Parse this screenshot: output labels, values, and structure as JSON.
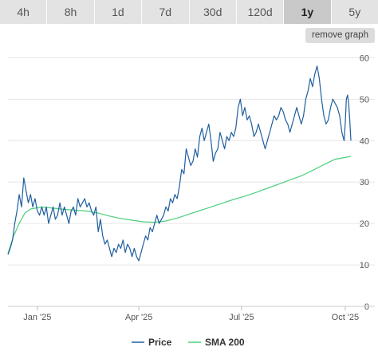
{
  "tabs": [
    {
      "label": "4h",
      "active": false
    },
    {
      "label": "8h",
      "active": false
    },
    {
      "label": "1d",
      "active": false
    },
    {
      "label": "7d",
      "active": false
    },
    {
      "label": "30d",
      "active": false
    },
    {
      "label": "120d",
      "active": false
    },
    {
      "label": "1y",
      "active": true
    },
    {
      "label": "5y",
      "active": false
    }
  ],
  "remove_graph_label": "remove graph",
  "colors": {
    "price": "#1f5f9e",
    "sma": "#4ccf7b",
    "grid": "#e6e6e6",
    "tab_bg": "#e3e3e3",
    "tab_active_bg": "#c9c9c9"
  },
  "chart_data": {
    "type": "line",
    "y_ticks": [
      0,
      10,
      20,
      30,
      40,
      50,
      60
    ],
    "ylim": [
      0,
      62
    ],
    "y_axis_position": "right",
    "grid": true,
    "x_ticks": [
      {
        "label": "Jan '25",
        "day": 26
      },
      {
        "label": "Apr '25",
        "day": 116
      },
      {
        "label": "Jul '25",
        "day": 207
      },
      {
        "label": "Oct '25",
        "day": 299
      }
    ],
    "x_range_days": [
      0,
      304
    ],
    "legend": {
      "position": "bottom-center"
    },
    "series": [
      {
        "name": "Price",
        "color": "#1f5f9e",
        "points": [
          [
            0,
            12.5
          ],
          [
            2,
            14
          ],
          [
            4,
            16
          ],
          [
            6,
            20
          ],
          [
            8,
            23
          ],
          [
            10,
            27
          ],
          [
            12,
            24
          ],
          [
            14,
            31
          ],
          [
            16,
            28
          ],
          [
            18,
            25
          ],
          [
            20,
            27
          ],
          [
            22,
            24
          ],
          [
            24,
            26
          ],
          [
            26,
            23
          ],
          [
            28,
            22
          ],
          [
            30,
            24
          ],
          [
            32,
            22
          ],
          [
            34,
            24
          ],
          [
            36,
            20
          ],
          [
            38,
            22
          ],
          [
            40,
            24
          ],
          [
            42,
            21
          ],
          [
            44,
            22
          ],
          [
            46,
            25
          ],
          [
            48,
            22
          ],
          [
            50,
            24
          ],
          [
            52,
            22
          ],
          [
            54,
            20
          ],
          [
            56,
            23
          ],
          [
            58,
            24
          ],
          [
            60,
            22
          ],
          [
            62,
            26
          ],
          [
            64,
            24
          ],
          [
            66,
            25
          ],
          [
            68,
            26
          ],
          [
            70,
            24
          ],
          [
            72,
            25
          ],
          [
            74,
            23
          ],
          [
            76,
            22
          ],
          [
            78,
            24
          ],
          [
            80,
            18
          ],
          [
            82,
            21
          ],
          [
            84,
            17
          ],
          [
            86,
            15
          ],
          [
            88,
            16
          ],
          [
            90,
            14
          ],
          [
            92,
            12
          ],
          [
            94,
            14
          ],
          [
            96,
            13
          ],
          [
            98,
            15
          ],
          [
            100,
            14
          ],
          [
            102,
            16
          ],
          [
            104,
            13
          ],
          [
            106,
            15
          ],
          [
            108,
            14
          ],
          [
            110,
            12
          ],
          [
            112,
            14
          ],
          [
            114,
            12
          ],
          [
            116,
            11
          ],
          [
            118,
            13
          ],
          [
            120,
            15
          ],
          [
            122,
            17
          ],
          [
            124,
            16
          ],
          [
            126,
            19
          ],
          [
            128,
            18
          ],
          [
            130,
            20
          ],
          [
            132,
            22
          ],
          [
            134,
            20
          ],
          [
            136,
            21
          ],
          [
            138,
            22
          ],
          [
            140,
            24
          ],
          [
            142,
            23
          ],
          [
            144,
            26
          ],
          [
            146,
            25
          ],
          [
            148,
            27
          ],
          [
            150,
            26
          ],
          [
            152,
            29
          ],
          [
            154,
            33
          ],
          [
            156,
            32
          ],
          [
            158,
            38
          ],
          [
            160,
            36
          ],
          [
            162,
            34
          ],
          [
            164,
            35
          ],
          [
            166,
            38
          ],
          [
            168,
            36
          ],
          [
            170,
            41
          ],
          [
            172,
            43
          ],
          [
            174,
            40
          ],
          [
            176,
            42
          ],
          [
            178,
            44
          ],
          [
            180,
            40
          ],
          [
            182,
            35
          ],
          [
            184,
            37
          ],
          [
            186,
            38
          ],
          [
            188,
            42
          ],
          [
            190,
            40
          ],
          [
            192,
            38
          ],
          [
            194,
            41
          ],
          [
            196,
            40
          ],
          [
            198,
            42
          ],
          [
            200,
            41
          ],
          [
            202,
            43
          ],
          [
            204,
            48
          ],
          [
            206,
            50
          ],
          [
            208,
            46
          ],
          [
            210,
            48
          ],
          [
            212,
            45
          ],
          [
            214,
            46
          ],
          [
            216,
            44
          ],
          [
            218,
            41
          ],
          [
            220,
            42
          ],
          [
            222,
            44
          ],
          [
            224,
            42
          ],
          [
            226,
            40
          ],
          [
            228,
            38
          ],
          [
            230,
            40
          ],
          [
            232,
            42
          ],
          [
            234,
            44
          ],
          [
            236,
            46
          ],
          [
            238,
            45
          ],
          [
            240,
            46
          ],
          [
            242,
            48
          ],
          [
            244,
            47
          ],
          [
            246,
            45
          ],
          [
            248,
            44
          ],
          [
            250,
            42
          ],
          [
            252,
            44
          ],
          [
            254,
            46
          ],
          [
            256,
            48
          ],
          [
            258,
            46
          ],
          [
            260,
            44
          ],
          [
            262,
            46
          ],
          [
            264,
            50
          ],
          [
            266,
            52
          ],
          [
            268,
            55
          ],
          [
            270,
            53
          ],
          [
            272,
            56
          ],
          [
            274,
            58
          ],
          [
            276,
            55
          ],
          [
            278,
            50
          ],
          [
            280,
            46
          ],
          [
            282,
            44
          ],
          [
            284,
            45
          ],
          [
            286,
            48
          ],
          [
            288,
            50
          ],
          [
            290,
            49
          ],
          [
            292,
            48
          ],
          [
            294,
            46
          ],
          [
            296,
            42
          ],
          [
            298,
            40
          ],
          [
            299,
            44
          ],
          [
            300,
            50
          ],
          [
            301,
            51
          ],
          [
            302,
            49
          ],
          [
            303,
            45
          ],
          [
            304,
            40
          ]
        ]
      },
      {
        "name": "SMA 200",
        "color": "#4ccf7b",
        "points": [
          [
            0,
            12.8
          ],
          [
            5,
            17
          ],
          [
            10,
            20
          ],
          [
            15,
            22.5
          ],
          [
            20,
            23.5
          ],
          [
            30,
            24
          ],
          [
            40,
            23.7
          ],
          [
            50,
            23.4
          ],
          [
            60,
            23.2
          ],
          [
            70,
            23
          ],
          [
            80,
            22.5
          ],
          [
            90,
            21.8
          ],
          [
            100,
            21.2
          ],
          [
            110,
            20.8
          ],
          [
            120,
            20.4
          ],
          [
            130,
            20.3
          ],
          [
            140,
            20.6
          ],
          [
            150,
            21.3
          ],
          [
            160,
            22.2
          ],
          [
            170,
            23.1
          ],
          [
            180,
            24
          ],
          [
            190,
            24.9
          ],
          [
            200,
            25.8
          ],
          [
            210,
            26.6
          ],
          [
            220,
            27.5
          ],
          [
            230,
            28.5
          ],
          [
            240,
            29.5
          ],
          [
            250,
            30.5
          ],
          [
            260,
            31.5
          ],
          [
            270,
            32.8
          ],
          [
            280,
            34.2
          ],
          [
            290,
            35.5
          ],
          [
            304,
            36.2
          ]
        ]
      }
    ]
  }
}
